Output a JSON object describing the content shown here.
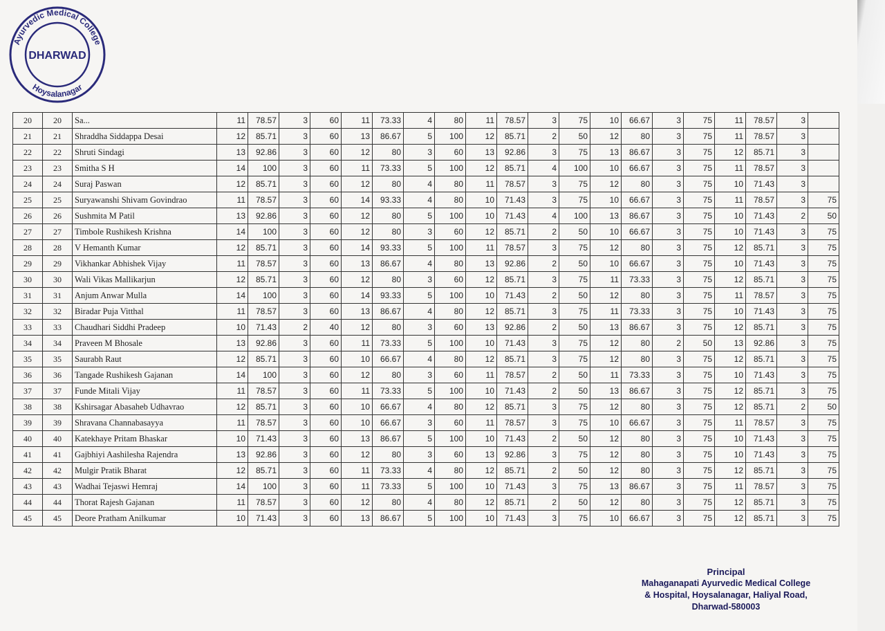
{
  "stamp": {
    "text_outer": "Ayurvedic Medical College",
    "text_center": "DHARWAD",
    "text_bottom": "Hoysalanagar"
  },
  "signature": {
    "title": "Principal",
    "line1": "Mahaganapati Ayurvedic Medical College",
    "line2": "& Hospital, Hoysalanagar, Haliyal Road,",
    "line3": "Dharwad-580003"
  },
  "rows": [
    [
      "20",
      "20",
      "Sa...",
      "11",
      "78.57",
      "3",
      "60",
      "11",
      "73.33",
      "4",
      "80",
      "11",
      "78.57",
      "3",
      "75",
      "10",
      "66.67",
      "3",
      "75",
      "11",
      "78.57",
      "3",
      ""
    ],
    [
      "21",
      "21",
      "Shraddha Siddappa Desai",
      "12",
      "85.71",
      "3",
      "60",
      "13",
      "86.67",
      "5",
      "100",
      "12",
      "85.71",
      "2",
      "50",
      "12",
      "80",
      "3",
      "75",
      "11",
      "78.57",
      "3",
      ""
    ],
    [
      "22",
      "22",
      "Shruti Sindagi",
      "13",
      "92.86",
      "3",
      "60",
      "12",
      "80",
      "3",
      "60",
      "13",
      "92.86",
      "3",
      "75",
      "13",
      "86.67",
      "3",
      "75",
      "12",
      "85.71",
      "3",
      ""
    ],
    [
      "23",
      "23",
      "Smitha S H",
      "14",
      "100",
      "3",
      "60",
      "11",
      "73.33",
      "5",
      "100",
      "12",
      "85.71",
      "4",
      "100",
      "10",
      "66.67",
      "3",
      "75",
      "11",
      "78.57",
      "3",
      ""
    ],
    [
      "24",
      "24",
      "Suraj Paswan",
      "12",
      "85.71",
      "3",
      "60",
      "12",
      "80",
      "4",
      "80",
      "11",
      "78.57",
      "3",
      "75",
      "12",
      "80",
      "3",
      "75",
      "10",
      "71.43",
      "3",
      ""
    ],
    [
      "25",
      "25",
      "Suryawanshi Shivam Govindrao",
      "11",
      "78.57",
      "3",
      "60",
      "14",
      "93.33",
      "4",
      "80",
      "10",
      "71.43",
      "3",
      "75",
      "10",
      "66.67",
      "3",
      "75",
      "11",
      "78.57",
      "3",
      "75"
    ],
    [
      "26",
      "26",
      "Sushmita M Patil",
      "13",
      "92.86",
      "3",
      "60",
      "12",
      "80",
      "5",
      "100",
      "10",
      "71.43",
      "4",
      "100",
      "13",
      "86.67",
      "3",
      "75",
      "10",
      "71.43",
      "2",
      "50"
    ],
    [
      "27",
      "27",
      "Timbole Rushikesh Krishna",
      "14",
      "100",
      "3",
      "60",
      "12",
      "80",
      "3",
      "60",
      "12",
      "85.71",
      "2",
      "50",
      "10",
      "66.67",
      "3",
      "75",
      "10",
      "71.43",
      "3",
      "75"
    ],
    [
      "28",
      "28",
      "V Hemanth Kumar",
      "12",
      "85.71",
      "3",
      "60",
      "14",
      "93.33",
      "5",
      "100",
      "11",
      "78.57",
      "3",
      "75",
      "12",
      "80",
      "3",
      "75",
      "12",
      "85.71",
      "3",
      "75"
    ],
    [
      "29",
      "29",
      "Vikhankar Abhishek Vijay",
      "11",
      "78.57",
      "3",
      "60",
      "13",
      "86.67",
      "4",
      "80",
      "13",
      "92.86",
      "2",
      "50",
      "10",
      "66.67",
      "3",
      "75",
      "10",
      "71.43",
      "3",
      "75"
    ],
    [
      "30",
      "30",
      "Wali Vikas Mallikarjun",
      "12",
      "85.71",
      "3",
      "60",
      "12",
      "80",
      "3",
      "60",
      "12",
      "85.71",
      "3",
      "75",
      "11",
      "73.33",
      "3",
      "75",
      "12",
      "85.71",
      "3",
      "75"
    ],
    [
      "31",
      "31",
      "Anjum Anwar Mulla",
      "14",
      "100",
      "3",
      "60",
      "14",
      "93.33",
      "5",
      "100",
      "10",
      "71.43",
      "2",
      "50",
      "12",
      "80",
      "3",
      "75",
      "11",
      "78.57",
      "3",
      "75"
    ],
    [
      "32",
      "32",
      "Biradar Puja Vitthal",
      "11",
      "78.57",
      "3",
      "60",
      "13",
      "86.67",
      "4",
      "80",
      "12",
      "85.71",
      "3",
      "75",
      "11",
      "73.33",
      "3",
      "75",
      "10",
      "71.43",
      "3",
      "75"
    ],
    [
      "33",
      "33",
      "Chaudhari Siddhi Pradeep",
      "10",
      "71.43",
      "2",
      "40",
      "12",
      "80",
      "3",
      "60",
      "13",
      "92.86",
      "2",
      "50",
      "13",
      "86.67",
      "3",
      "75",
      "12",
      "85.71",
      "3",
      "75"
    ],
    [
      "34",
      "34",
      "Praveen M Bhosale",
      "13",
      "92.86",
      "3",
      "60",
      "11",
      "73.33",
      "5",
      "100",
      "10",
      "71.43",
      "3",
      "75",
      "12",
      "80",
      "2",
      "50",
      "13",
      "92.86",
      "3",
      "75"
    ],
    [
      "35",
      "35",
      "Saurabh Raut",
      "12",
      "85.71",
      "3",
      "60",
      "10",
      "66.67",
      "4",
      "80",
      "12",
      "85.71",
      "3",
      "75",
      "12",
      "80",
      "3",
      "75",
      "12",
      "85.71",
      "3",
      "75"
    ],
    [
      "36",
      "36",
      "Tangade Rushikesh Gajanan",
      "14",
      "100",
      "3",
      "60",
      "12",
      "80",
      "3",
      "60",
      "11",
      "78.57",
      "2",
      "50",
      "11",
      "73.33",
      "3",
      "75",
      "10",
      "71.43",
      "3",
      "75"
    ],
    [
      "37",
      "37",
      "Funde Mitali Vijay",
      "11",
      "78.57",
      "3",
      "60",
      "11",
      "73.33",
      "5",
      "100",
      "10",
      "71.43",
      "2",
      "50",
      "13",
      "86.67",
      "3",
      "75",
      "12",
      "85.71",
      "3",
      "75"
    ],
    [
      "38",
      "38",
      "Kshirsagar Abasaheb Udhavrao",
      "12",
      "85.71",
      "3",
      "60",
      "10",
      "66.67",
      "4",
      "80",
      "12",
      "85.71",
      "3",
      "75",
      "12",
      "80",
      "3",
      "75",
      "12",
      "85.71",
      "2",
      "50"
    ],
    [
      "39",
      "39",
      "Shravana Channabasayya",
      "11",
      "78.57",
      "3",
      "60",
      "10",
      "66.67",
      "3",
      "60",
      "11",
      "78.57",
      "3",
      "75",
      "10",
      "66.67",
      "3",
      "75",
      "11",
      "78.57",
      "3",
      "75"
    ],
    [
      "40",
      "40",
      "Katekhaye Pritam Bhaskar",
      "10",
      "71.43",
      "3",
      "60",
      "13",
      "86.67",
      "5",
      "100",
      "10",
      "71.43",
      "2",
      "50",
      "12",
      "80",
      "3",
      "75",
      "10",
      "71.43",
      "3",
      "75"
    ],
    [
      "41",
      "41",
      "Gajbhiyi Aashilesha Rajendra",
      "13",
      "92.86",
      "3",
      "60",
      "12",
      "80",
      "3",
      "60",
      "13",
      "92.86",
      "3",
      "75",
      "12",
      "80",
      "3",
      "75",
      "10",
      "71.43",
      "3",
      "75"
    ],
    [
      "42",
      "42",
      "Mulgir Pratik Bharat",
      "12",
      "85.71",
      "3",
      "60",
      "11",
      "73.33",
      "4",
      "80",
      "12",
      "85.71",
      "2",
      "50",
      "12",
      "80",
      "3",
      "75",
      "12",
      "85.71",
      "3",
      "75"
    ],
    [
      "43",
      "43",
      "Wadhai Tejaswi Hemraj",
      "14",
      "100",
      "3",
      "60",
      "11",
      "73.33",
      "5",
      "100",
      "10",
      "71.43",
      "3",
      "75",
      "13",
      "86.67",
      "3",
      "75",
      "11",
      "78.57",
      "3",
      "75"
    ],
    [
      "44",
      "44",
      "Thorat Rajesh Gajanan",
      "11",
      "78.57",
      "3",
      "60",
      "12",
      "80",
      "4",
      "80",
      "12",
      "85.71",
      "2",
      "50",
      "12",
      "80",
      "3",
      "75",
      "12",
      "85.71",
      "3",
      "75"
    ],
    [
      "45",
      "45",
      "Deore Pratham Anilkumar",
      "10",
      "71.43",
      "3",
      "60",
      "13",
      "86.67",
      "5",
      "100",
      "10",
      "71.43",
      "3",
      "75",
      "10",
      "66.67",
      "3",
      "75",
      "12",
      "85.71",
      "3",
      "75"
    ]
  ]
}
